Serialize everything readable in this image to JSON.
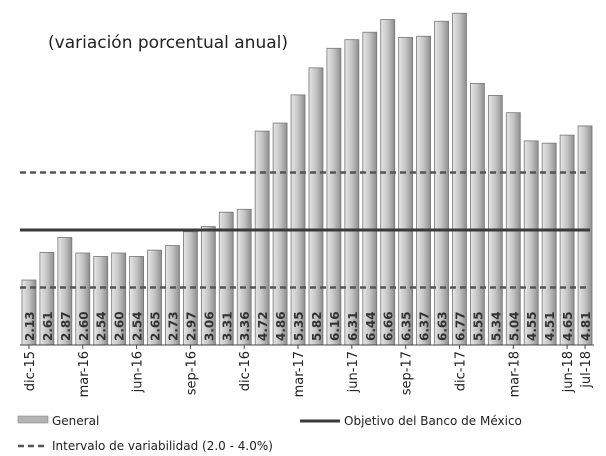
{
  "chart_data": {
    "type": "bar",
    "subtitle": "(variación porcentual anual)",
    "categories": [
      "dic-15",
      null,
      null,
      "mar-16",
      null,
      null,
      "jun-16",
      null,
      null,
      "sep-16",
      null,
      null,
      "dic-16",
      null,
      null,
      "mar-17",
      null,
      null,
      "jun-17",
      null,
      null,
      "sep-17",
      null,
      null,
      "dic-17",
      null,
      null,
      "mar-18",
      null,
      null,
      "jun-18",
      "jul-18"
    ],
    "series": [
      {
        "name": "General",
        "color": "#b4b4b4",
        "values": [
          2.13,
          2.61,
          2.87,
          2.6,
          2.54,
          2.6,
          2.54,
          2.65,
          2.73,
          2.97,
          3.06,
          3.31,
          3.36,
          4.72,
          4.86,
          5.35,
          5.82,
          6.16,
          6.31,
          6.44,
          6.66,
          6.35,
          6.37,
          6.63,
          6.77,
          5.55,
          5.34,
          5.04,
          4.55,
          4.51,
          4.65,
          4.81
        ],
        "value_labels": [
          "2.13",
          "2.61",
          "2.87",
          "2.60",
          "2.54",
          "2.60",
          "2.54",
          "2.65",
          "2.73",
          "2.97",
          "3.06",
          "3.31",
          "3.36",
          "4.72",
          "4.86",
          "5.35",
          "5.82",
          "6.16",
          "6.31",
          "6.44",
          "6.66",
          "6.35",
          "6.37",
          "6.63",
          "6.77",
          "5.55",
          "5.34",
          "5.04",
          "4.55",
          "4.51",
          "4.65",
          "4.81"
        ]
      }
    ],
    "ylim": [
      1,
      7
    ],
    "reference_lines": [
      {
        "name": "Objetivo del Banco de México",
        "values": [
          3
        ],
        "color": "#3a3a3a",
        "style": "solid"
      },
      {
        "name": "Intervalo de variabilidad (2.0 - 4.0%)",
        "values": [
          2,
          4
        ],
        "color": "#555555",
        "style": "dashed"
      }
    ]
  }
}
